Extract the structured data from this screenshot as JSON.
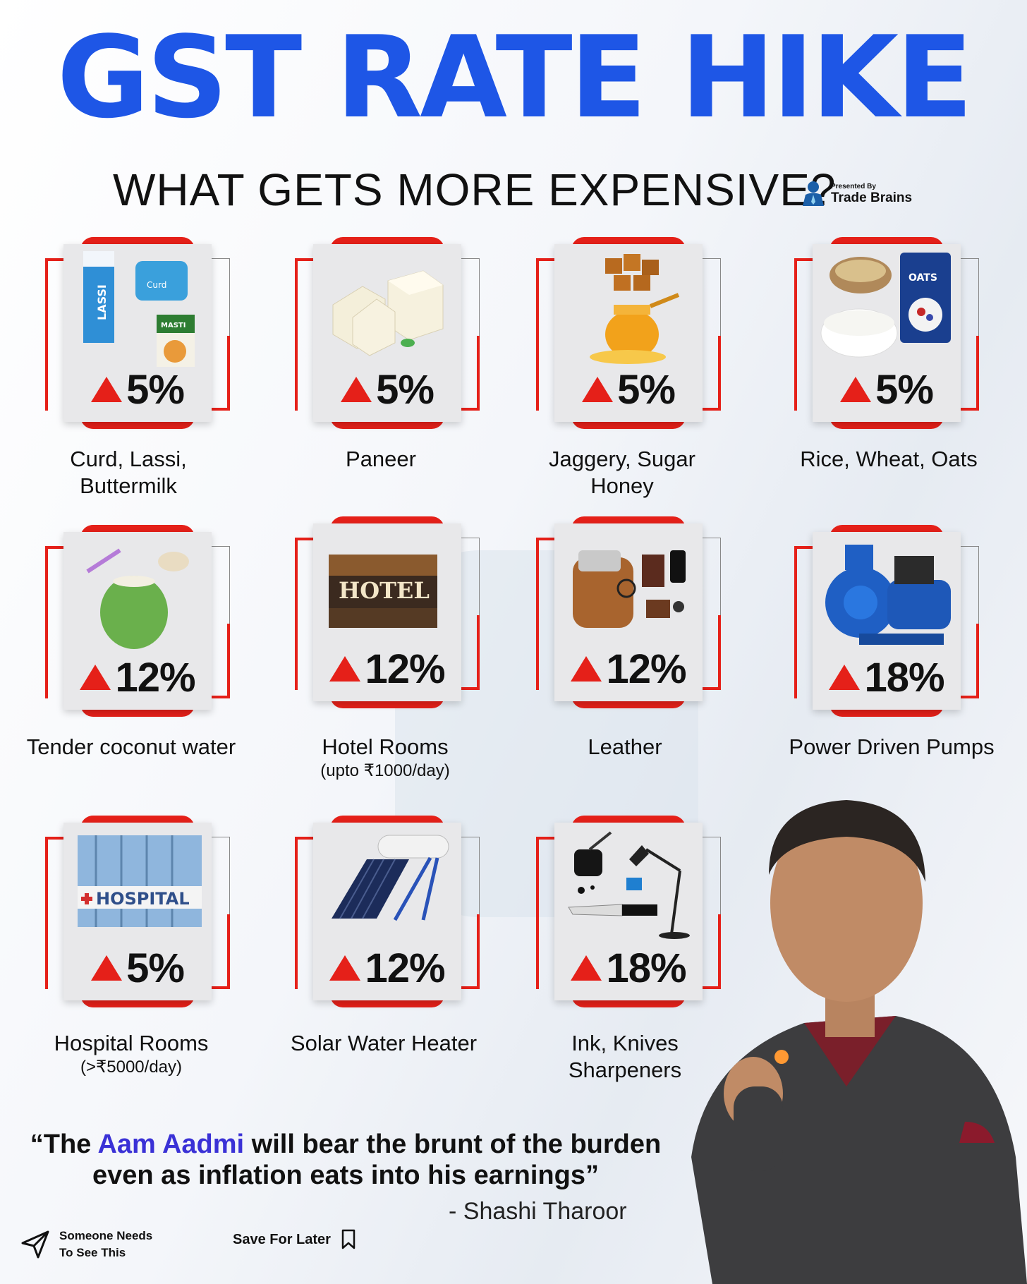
{
  "header": {
    "title": "GST RATE HIKE",
    "subtitle": "WHAT GETS MORE EXPENSIVE?",
    "brand_small": "Presented By",
    "brand_name": "Trade Brains"
  },
  "colors": {
    "title_blue": "#1e56e6",
    "accent_red": "#e52019",
    "highlight_purple": "#3a31d6"
  },
  "items": [
    {
      "rate": "5%",
      "label": "Curd, Lassi, Buttermilk",
      "sub": "",
      "icon": "dairy-packs-icon"
    },
    {
      "rate": "5%",
      "label": "Paneer",
      "sub": "",
      "icon": "paneer-cubes-icon"
    },
    {
      "rate": "5%",
      "label": "Jaggery, Sugar Honey",
      "sub": "",
      "icon": "honey-jaggery-icon"
    },
    {
      "rate": "5%",
      "label": "Rice, Wheat, Oats",
      "sub": "",
      "icon": "grains-oats-icon"
    },
    {
      "rate": "12%",
      "label": "Tender coconut water",
      "sub": "",
      "icon": "coconut-icon"
    },
    {
      "rate": "12%",
      "label": "Hotel Rooms",
      "sub": "(upto ₹1000/day)",
      "icon": "hotel-sign-icon"
    },
    {
      "rate": "12%",
      "label": "Leather",
      "sub": "",
      "icon": "leather-bag-icon"
    },
    {
      "rate": "18%",
      "label": "Power Driven Pumps",
      "sub": "",
      "icon": "water-pump-icon"
    },
    {
      "rate": "5%",
      "label": "Hospital Rooms",
      "sub": "(>₹5000/day)",
      "icon": "hospital-building-icon"
    },
    {
      "rate": "12%",
      "label": "Solar Water Heater",
      "sub": "",
      "icon": "solar-heater-icon"
    },
    {
      "rate": "18%",
      "label": "Ink, Knives Sharpeners",
      "sub": "",
      "icon": "ink-knife-lamp-icon"
    }
  ],
  "quote": {
    "open": "“The ",
    "highlight": "Aam Aadmi",
    "rest": " will bear the brunt of the burden even as inflation eats into his earnings”",
    "attribution": "- Shashi Tharoor"
  },
  "footer": {
    "share_line1": "Someone Needs",
    "share_line2": "To See This",
    "save_label": "Save For Later"
  }
}
